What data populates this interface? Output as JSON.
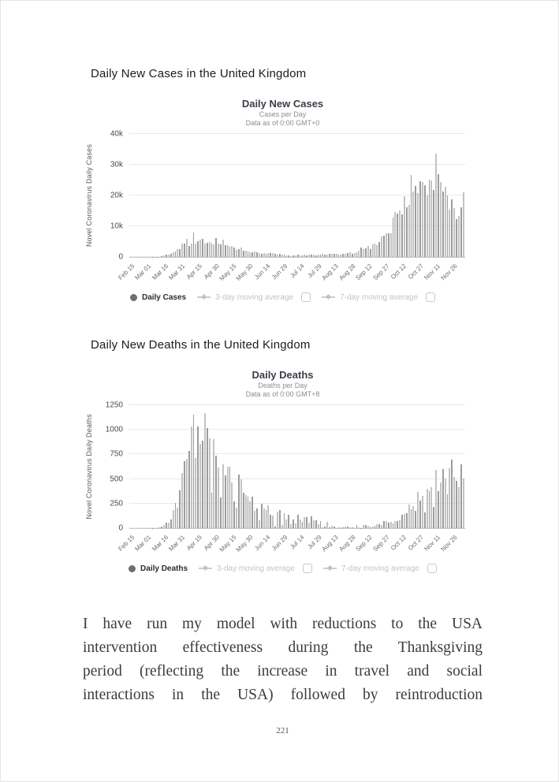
{
  "document": {
    "page_number": "221",
    "paragraph_lines": [
      "I have run my model with reductions to the USA",
      "intervention effectiveness during the Thanksgiving",
      "period (reflecting the increase in travel and social",
      "interactions in the USA) followed by reintroduction"
    ]
  },
  "sections": {
    "cases": {
      "heading": "Daily New Cases in the United Kingdom"
    },
    "deaths": {
      "heading": "Daily New Deaths in the United Kingdom"
    }
  },
  "colors": {
    "bar_dark": "#9c9c9c",
    "bar_light": "#c3c3c3",
    "gridline": "#e9e9e9",
    "axis_line": "#c9c9c9",
    "legend_active_text": "#2d2d2d",
    "legend_inactive_text": "#c4c4c4"
  },
  "chart_data": [
    {
      "type": "bar",
      "title": "Daily New Cases",
      "subtitle": "Cases per Day",
      "data_note": "Data as of 0:00 GMT+0",
      "ylabel": "Novel Coronavirus Daily Cases",
      "xlabel": "",
      "ylim": [
        0,
        40000
      ],
      "grid": "horizontal",
      "legend_position": "bottom",
      "y_ticks": [
        {
          "label": "0",
          "value": 0
        },
        {
          "label": "10k",
          "value": 10000
        },
        {
          "label": "20k",
          "value": 20000
        },
        {
          "label": "30k",
          "value": 30000
        },
        {
          "label": "40k",
          "value": 40000
        }
      ],
      "x_start": "Feb 15",
      "sample_interval_days": 2,
      "x_tick_interval_days": 15,
      "x_tick_labels": [
        "Feb 15",
        "Mar 01",
        "Mar 16",
        "Mar 31",
        "Apr 15",
        "Apr 30",
        "May 15",
        "May 30",
        "Jun 14",
        "Jun 29",
        "Jul 14",
        "Jul 29",
        "Aug 13",
        "Aug 28",
        "Sep 12",
        "Sep 27",
        "Oct 12",
        "Oct 27",
        "Nov 11",
        "Nov 26"
      ],
      "values": [
        0,
        0,
        0,
        0,
        0,
        1,
        2,
        3,
        10,
        15,
        30,
        60,
        90,
        130,
        340,
        400,
        680,
        710,
        1040,
        1430,
        1720,
        2440,
        2600,
        4320,
        4450,
        5900,
        3630,
        4340,
        7900,
        4340,
        5250,
        5600,
        5850,
        4450,
        4580,
        4910,
        4300,
        4080,
        6200,
        4340,
        3990,
        5610,
        3900,
        3880,
        3400,
        3560,
        3140,
        2410,
        2620,
        2960,
        2110,
        2010,
        1880,
        1570,
        1610,
        1800,
        1560,
        1220,
        1000,
        1270,
        1090,
        1280,
        1220,
        1290,
        960,
        650,
        1110,
        900,
        690,
        580,
        520,
        350,
        630,
        510,
        650,
        400,
        640,
        830,
        580,
        770,
        770,
        750,
        580,
        880,
        880,
        930,
        670,
        870,
        1060,
        1150,
        1000,
        1080,
        710,
        810,
        1030,
        1040,
        1180,
        1520,
        1110,
        1410,
        1510,
        1940,
        2990,
        2460,
        2920,
        3500,
        2620,
        3990,
        4320,
        3900,
        4930,
        6630,
        6870,
        7700,
        7700,
        7700,
        12870,
        14540,
        14160,
        15170,
        13970,
        19720,
        16170,
        16980,
        26680,
        21240,
        23010,
        20890,
        24700,
        24400,
        23250,
        20020,
        25180,
        24960,
        21910,
        33470,
        26860,
        24380,
        21360,
        22920,
        19880,
        15450,
        18660,
        16020,
        12330,
        13430,
        16170,
        21000
      ],
      "legend": [
        {
          "label": "Daily Cases",
          "marker": "circle",
          "primary": true,
          "checkbox": false
        },
        {
          "label": "3-day moving average",
          "marker": "line-diamond",
          "primary": false,
          "checkbox": true
        },
        {
          "label": "7-day moving average",
          "marker": "line-diamond",
          "primary": false,
          "checkbox": true
        }
      ]
    },
    {
      "type": "bar",
      "title": "Daily Deaths",
      "subtitle": "Deaths per Day",
      "data_note": "Data as of 0:00 GMT+8",
      "ylabel": "Novel Coronavirus Daily Deaths",
      "xlabel": "",
      "ylim": [
        0,
        1250
      ],
      "grid": "horizontal",
      "legend_position": "bottom",
      "y_ticks": [
        {
          "label": "0",
          "value": 0
        },
        {
          "label": "250",
          "value": 250
        },
        {
          "label": "500",
          "value": 500
        },
        {
          "label": "750",
          "value": 750
        },
        {
          "label": "1000",
          "value": 1000
        },
        {
          "label": "1250",
          "value": 1250
        }
      ],
      "x_start": "Feb 15",
      "sample_interval_days": 2,
      "x_tick_interval_days": 15,
      "x_tick_labels": [
        "Feb 15",
        "Mar 01",
        "Mar 16",
        "Mar 31",
        "Apr 15",
        "Apr 30",
        "May 15",
        "May 30",
        "Jun 14",
        "Jun 29",
        "Jul 14",
        "Jul 29",
        "Aug 13",
        "Aug 28",
        "Sep 12",
        "Sep 27",
        "Oct 12",
        "Oct 27",
        "Nov 11",
        "Nov 26"
      ],
      "values": [
        0,
        0,
        0,
        0,
        0,
        0,
        0,
        0,
        0,
        0,
        1,
        2,
        3,
        6,
        14,
        35,
        56,
        56,
        87,
        181,
        260,
        209,
        382,
        563,
        684,
        708,
        786,
        1034,
        1152,
        717,
        1033,
        861,
        888,
        1166,
        1014,
        913,
        360,
        909,
        739,
        621,
        315,
        649,
        539,
        627,
        626,
        468,
        269,
        210,
        545,
        494,
        363,
        338,
        324,
        274,
        324,
        176,
        204,
        77,
        245,
        202,
        181,
        233,
        135,
        128,
        15,
        171,
        186,
        36,
        155,
        89,
        137,
        44,
        85,
        48,
        138,
        85,
        66,
        111,
        110,
        53,
        123,
        79,
        83,
        38,
        74,
        8,
        14,
        65,
        12,
        21,
        18,
        3,
        5,
        12,
        6,
        16,
        16,
        9,
        12,
        2,
        32,
        10,
        3,
        30,
        32,
        21,
        9,
        20,
        27,
        37,
        37,
        34,
        71,
        71,
        59,
        66,
        49,
        76,
        70,
        81,
        137,
        143,
        150,
        241,
        191,
        224,
        174,
        367,
        280,
        326,
        162,
        397,
        378,
        413,
        213,
        595,
        376,
        462,
        598,
        501,
        341,
        608,
        695,
        521,
        479,
        414,
        648,
        504
      ],
      "legend": [
        {
          "label": "Daily Deaths",
          "marker": "circle",
          "primary": true,
          "checkbox": false
        },
        {
          "label": "3-day moving average",
          "marker": "line-diamond",
          "primary": false,
          "checkbox": true
        },
        {
          "label": "7-day moving average",
          "marker": "line-diamond",
          "primary": false,
          "checkbox": true
        }
      ]
    }
  ]
}
